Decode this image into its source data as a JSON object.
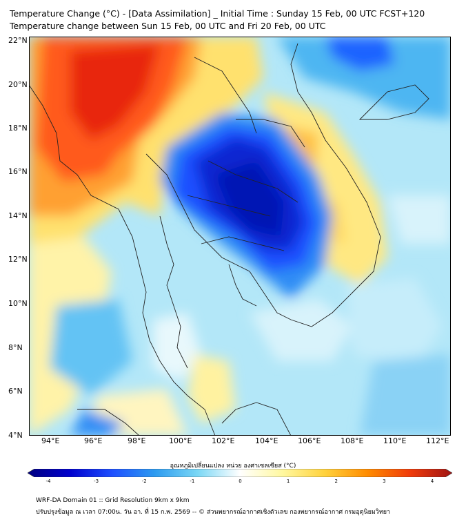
{
  "title_line1": "Temperature Change (°C) - [Data Assimilation] _ Initial Time : Sunday 15 Feb, 00 UTC FCST+120",
  "title_line2": "Temperature change between Sun 15 Feb, 00 UTC and Fri 20 Feb, 00 UTC",
  "lat_labels": [
    "22°N",
    "20°N",
    "18°N",
    "16°N",
    "14°N",
    "12°N",
    "10°N",
    "8°N",
    "6°N",
    "4°N"
  ],
  "lon_labels": [
    "94°E",
    "96°E",
    "98°E",
    "100°E",
    "102°E",
    "104°E",
    "106°E",
    "108°E",
    "110°E",
    "112°E"
  ],
  "colorbar": {
    "title": "อุณหภูมิเปลี่ยนแปลง หน่วย องศาเซลเซียส (°C)",
    "ticks": [
      "-4",
      "-3",
      "-2",
      "-1",
      "0",
      "1",
      "2",
      "3",
      "4"
    ],
    "min": -4,
    "max": 4,
    "colors": [
      "#000080",
      "#0000cd",
      "#1e50ff",
      "#2d9bf0",
      "#7ad7f5",
      "#ffffff",
      "#fff8a0",
      "#ffd23c",
      "#ff8c00",
      "#f03c0a",
      "#a01414"
    ]
  },
  "footer_line1": "WRF-DA Domain 01 :: Grid Resolution 9km x 9km",
  "footer_line2": "ปรับปรุงข้อมูล ณ เวลา 07:00น. วัน อา. ที่ 15 ก.พ. 2569 -- © ส่วนพยากรณ์อากาศเชิงตัวเลข กองพยากรณ์อากาศ กรมอุตุนิยมวิทยา"
}
